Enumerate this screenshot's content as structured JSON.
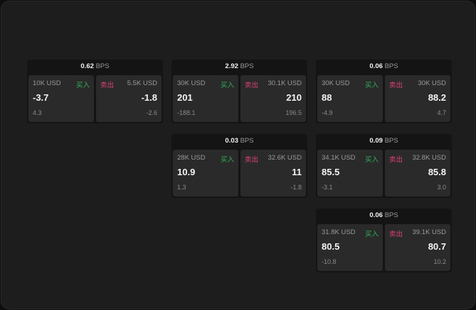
{
  "unit": "BPS",
  "buy_label": "买入",
  "sell_label": "卖出",
  "colors": {
    "buy": "#2fb35a",
    "sell": "#e0407a",
    "background": "#1d1d1d",
    "panel": "#2a2a2a"
  },
  "cards": [
    {
      "spread": "0.62",
      "bid": {
        "size": "10K USD",
        "price": "-3.7",
        "change": "4.3"
      },
      "ask": {
        "size": "5.5K USD",
        "price": "-1.8",
        "change": "-2.6"
      }
    },
    {
      "spread": "2.92",
      "bid": {
        "size": "30K USD",
        "price": "201",
        "change": "-188.1"
      },
      "ask": {
        "size": "30.1K USD",
        "price": "210",
        "change": "196.5"
      }
    },
    {
      "spread": "0.06",
      "bid": {
        "size": "30K USD",
        "price": "88",
        "change": "-4.9"
      },
      "ask": {
        "size": "30K USD",
        "price": "88.2",
        "change": "4.7"
      }
    },
    {
      "spread": "0.03",
      "bid": {
        "size": "28K USD",
        "price": "10.9",
        "change": "1.3"
      },
      "ask": {
        "size": "32.6K USD",
        "price": "11",
        "change": "-1.8"
      }
    },
    {
      "spread": "0.09",
      "bid": {
        "size": "34.1K USD",
        "price": "85.5",
        "change": "-3.1"
      },
      "ask": {
        "size": "32.8K USD",
        "price": "85.8",
        "change": "3.0"
      }
    },
    {
      "spread": "0.06",
      "bid": {
        "size": "31.8K USD",
        "price": "80.5",
        "change": "-10.8"
      },
      "ask": {
        "size": "39.1K USD",
        "price": "80.7",
        "change": "10.2"
      }
    }
  ]
}
